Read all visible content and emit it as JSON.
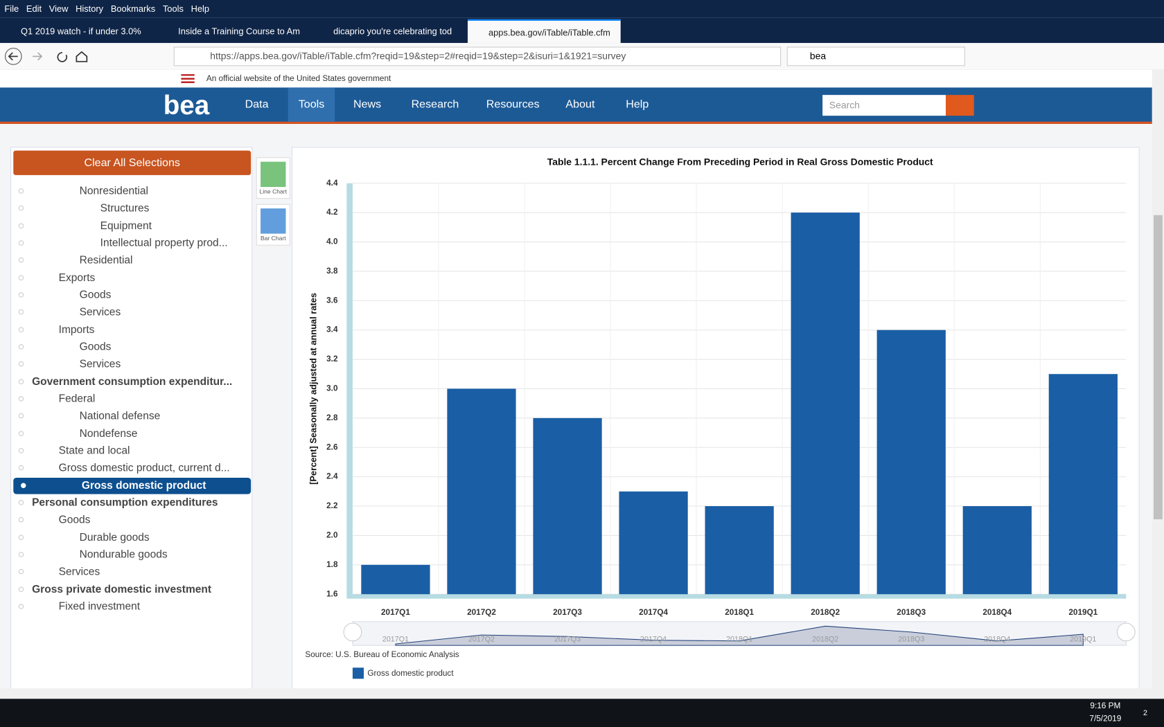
{
  "browser": {
    "menu": [
      "File",
      "Edit",
      "View",
      "History",
      "Bookmarks",
      "Tools",
      "Help"
    ],
    "tabs": [
      "Q1 2019 watch - if under 3.0%",
      "Inside a Training Course to Am",
      "dicaprio you're celebrating tod",
      "apps.bea.gov/iTable/iTable.cfm"
    ],
    "url": "https://apps.bea.gov/iTable/iTable.cfm?reqid=19&step=2#reqid=19&step=2&isuri=1&1921=survey",
    "search": "bea"
  },
  "site": {
    "gov_banner": "An official website of the United States government",
    "logo": "bea",
    "nav": [
      "Data",
      "Tools",
      "News",
      "Research",
      "Resources",
      "About",
      "Help"
    ],
    "search_placeholder": "Search"
  },
  "sidebar": {
    "clear_button": "Clear All Selections",
    "items": [
      "Nonresidential",
      "Structures",
      "Equipment",
      "Intellectual property prod...",
      "Residential",
      "Exports",
      "Goods",
      "Services",
      "Imports",
      "Goods",
      "Services",
      "Government consumption expenditur...",
      "Federal",
      "National defense",
      "Nondefense",
      "State and local",
      "Gross domestic product, current d...",
      "Gross domestic product",
      "Personal consumption expenditures",
      "Goods",
      "Durable goods",
      "Nondurable goods",
      "Services",
      "Gross private domestic investment",
      "Fixed investment"
    ]
  },
  "chart_tools": [
    "Line Chart",
    "Bar Chart"
  ],
  "chart_data": {
    "type": "bar",
    "title": "Table 1.1.1. Percent Change From Preceding Period in Real Gross Domestic Product",
    "y_label": "[Percent] Seasonally adjusted at annual rates",
    "categories": [
      "2017Q1",
      "2017Q2",
      "2017Q3",
      "2017Q4",
      "2018Q1",
      "2018Q2",
      "2018Q3",
      "2018Q4",
      "2019Q1"
    ],
    "series": [
      {
        "name": "Gross domestic product",
        "color": "#1a5ea5",
        "values": [
          1.8,
          3.0,
          2.8,
          2.3,
          2.2,
          4.2,
          3.4,
          2.2,
          3.1
        ]
      }
    ],
    "ylim": [
      1.6,
      4.4
    ],
    "yticks": [
      1.6,
      1.8,
      {
        "value": 2,
        "label": "2.0"
      },
      2.2,
      2.4,
      2.6,
      2.8,
      {
        "value": 3,
        "label": "3.0"
      },
      3.2,
      3.4,
      3.6,
      3.8,
      {
        "value": 4,
        "label": "4.0"
      },
      4.2,
      4.4
    ],
    "grid": true,
    "source": "Source: U.S. Bureau of Economic Analysis"
  },
  "taskbar": {
    "time": "9:16 PM",
    "date": "7/5/2019",
    "notifications": "2"
  }
}
